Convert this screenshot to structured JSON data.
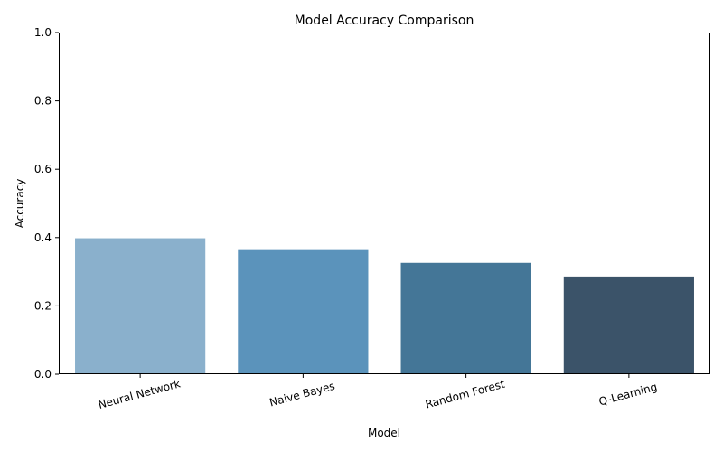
{
  "chart_data": {
    "type": "bar",
    "title": "Model Accuracy Comparison",
    "xlabel": "Model",
    "ylabel": "Accuracy",
    "categories": [
      "Neural Network",
      "Naive Bayes",
      "Random Forest",
      "Q-Learning"
    ],
    "values": [
      0.398,
      0.366,
      0.326,
      0.286
    ],
    "colors": [
      "#8ab0cc",
      "#5b93bb",
      "#447697",
      "#3b5369"
    ],
    "ylim": [
      0,
      1
    ],
    "yticks": [
      0.0,
      0.2,
      0.4,
      0.6,
      0.8,
      1.0
    ],
    "ytick_labels": [
      "0.0",
      "0.2",
      "0.4",
      "0.6",
      "0.8",
      "1.0"
    ],
    "grid": false,
    "legend": "none"
  }
}
